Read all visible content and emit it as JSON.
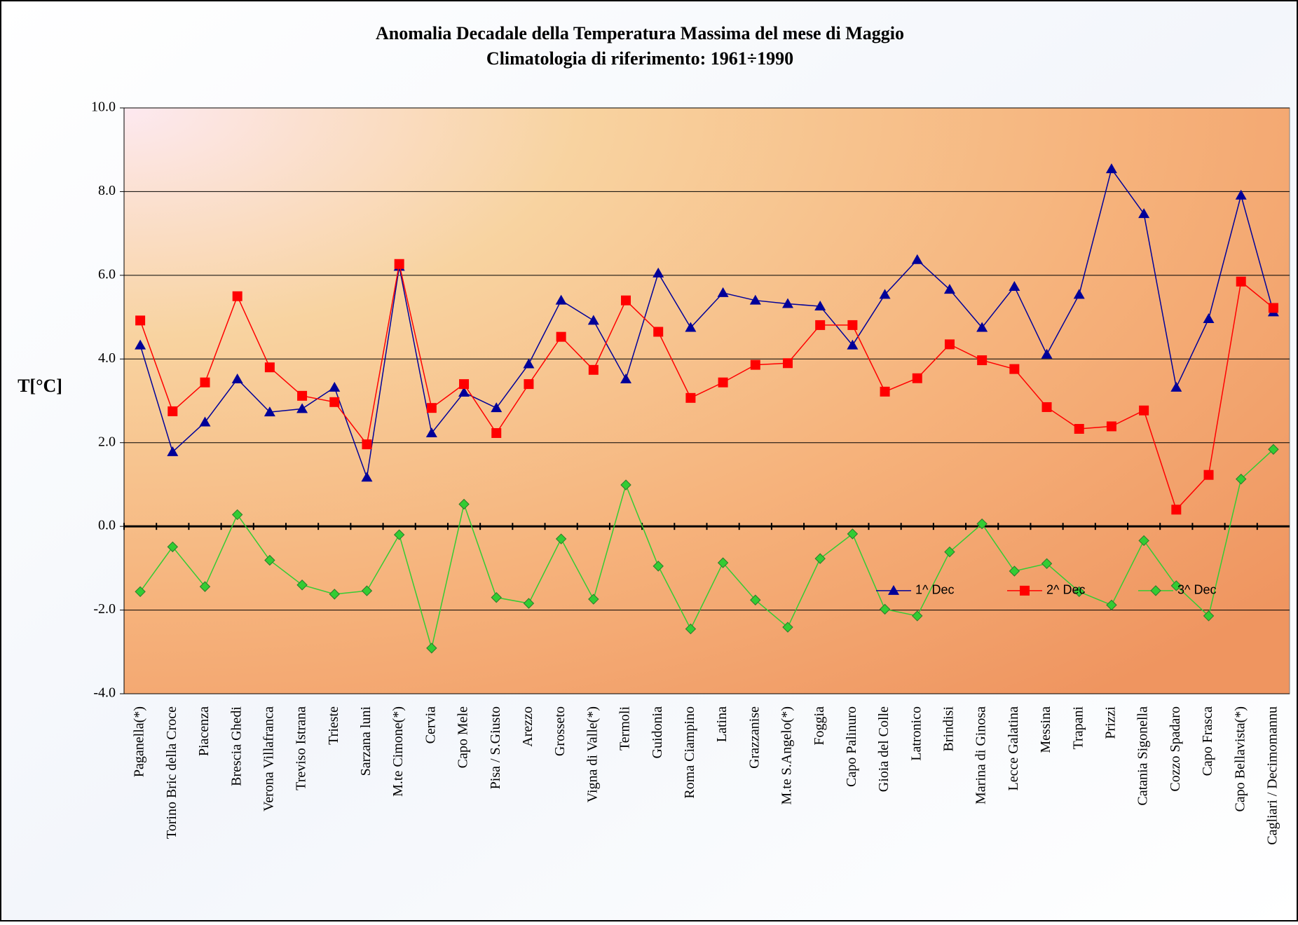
{
  "chart_data": {
    "type": "line",
    "title": "Anomalia Decadale della Temperatura Massima del mese di Maggio",
    "subtitle": "Climatologia di riferimento: 1961÷1990",
    "y_label": "T[°C]",
    "categories": [
      "Paganella(*)",
      "Torino Bric della Croce",
      "Piacenza",
      "Brescia Ghedi",
      "Verona Villafranca",
      "Treviso Istrana",
      "Trieste",
      "Sarzana luni",
      "M.te Cimone(*)",
      "Cervia",
      "Capo Mele",
      "Pisa / S.Giusto",
      "Arezzo",
      "Grosseto",
      "Vigna di Valle(*)",
      "Termoli",
      "Guidonia",
      "Roma Ciampino",
      "Latina",
      "Grazzanise",
      "M.te S.Angelo(*)",
      "Foggia",
      "Capo Palinuro",
      "Gioia del Colle",
      "Latronico",
      "Brindisi",
      "Marina di Ginosa",
      "Lecce Galatina",
      "Messina",
      "Trapani",
      "Prizzi",
      "Catania Sigonella",
      "Cozzo Spadaro",
      "Capo Frasca",
      "Capo Bellavista(*)",
      "Cagliari / Decimomannu"
    ],
    "series": [
      {
        "name": "1^ Dec",
        "color": "#000099",
        "marker": "triangle",
        "values": [
          4.33,
          1.78,
          2.49,
          3.52,
          2.73,
          2.81,
          3.32,
          1.17,
          6.21,
          2.23,
          3.2,
          2.83,
          3.88,
          5.4,
          4.92,
          3.52,
          6.05,
          4.75,
          5.58,
          5.4,
          5.32,
          5.26,
          4.33,
          5.54,
          6.37,
          5.66,
          4.75,
          5.73,
          4.11,
          5.54,
          8.54,
          7.47,
          3.32,
          4.96,
          7.91,
          5.12
        ]
      },
      {
        "name": "2^ Dec",
        "color": "#ff0000",
        "marker": "square",
        "values": [
          4.92,
          2.75,
          3.44,
          5.5,
          3.8,
          3.12,
          2.97,
          1.96,
          6.27,
          2.83,
          3.4,
          2.23,
          3.4,
          4.53,
          3.74,
          5.4,
          4.65,
          3.07,
          3.44,
          3.86,
          3.9,
          4.81,
          4.81,
          3.22,
          3.54,
          4.35,
          3.97,
          3.76,
          2.85,
          2.33,
          2.39,
          2.77,
          0.4,
          1.23,
          5.85,
          5.22
        ]
      },
      {
        "name": "3^ Dec",
        "color": "#33cc33",
        "marker": "diamond",
        "values": [
          -1.56,
          -0.49,
          -1.44,
          0.28,
          -0.81,
          -1.4,
          -1.62,
          -1.54,
          -0.2,
          -2.91,
          0.53,
          -1.7,
          -1.84,
          -0.3,
          -1.74,
          0.99,
          -0.95,
          -2.45,
          -0.87,
          -1.76,
          -2.41,
          -0.77,
          -0.18,
          -1.98,
          -2.14,
          -0.61,
          0.06,
          -1.07,
          -0.89,
          -1.56,
          -1.88,
          -0.34,
          -1.42,
          -2.14,
          1.13,
          1.84
        ]
      }
    ],
    "ylim": [
      -4,
      10
    ],
    "yticks": [
      {
        "value": -4,
        "label": "-4.0"
      },
      {
        "value": -2,
        "label": "-2.0"
      },
      {
        "value": 0,
        "label": "0.0"
      },
      {
        "value": 2,
        "label": "2.0"
      },
      {
        "value": 4,
        "label": "4.0"
      },
      {
        "value": 6,
        "label": "6.0"
      },
      {
        "value": 8,
        "label": "8.0"
      },
      {
        "value": 10,
        "label": "10.0"
      }
    ],
    "grid": true,
    "legend": "lower right"
  }
}
